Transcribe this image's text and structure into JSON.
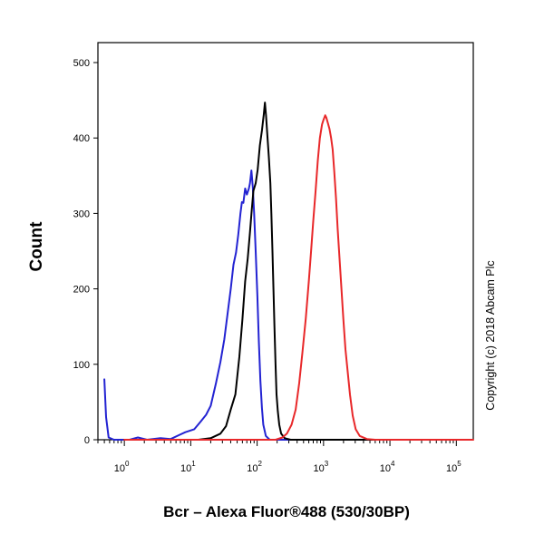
{
  "chart_data": {
    "type": "line",
    "title": "",
    "xlabel": "Bcr – Alexa Fluor®488 (530/30BP)",
    "ylabel": "Count",
    "x_scale": "log",
    "xlim": [
      0.4,
      180000
    ],
    "ylim": [
      0,
      500
    ],
    "x_ticks": [
      {
        "value": 1,
        "base": "10",
        "exp": "0"
      },
      {
        "value": 10,
        "base": "10",
        "exp": "1"
      },
      {
        "value": 100,
        "base": "10",
        "exp": "2"
      },
      {
        "value": 1000,
        "base": "10",
        "exp": "3"
      },
      {
        "value": 10000,
        "base": "10",
        "exp": "4"
      },
      {
        "value": 100000,
        "base": "10",
        "exp": "5"
      }
    ],
    "y_ticks": [
      0,
      100,
      200,
      300,
      400,
      500
    ],
    "grid": false,
    "annotation": "Copyright (c) 2018 Abcam Plc",
    "series": [
      {
        "color": "#2323d2",
        "points": [
          [
            0.5,
            80
          ],
          [
            0.53,
            30
          ],
          [
            0.58,
            3
          ],
          [
            0.7,
            0
          ],
          [
            1.2,
            0
          ],
          [
            1.6,
            3
          ],
          [
            2.2,
            0
          ],
          [
            3.5,
            2
          ],
          [
            5,
            1
          ],
          [
            6.6,
            6
          ],
          [
            8.3,
            10
          ],
          [
            11.3,
            14
          ],
          [
            14.1,
            24
          ],
          [
            17,
            33
          ],
          [
            20,
            45
          ],
          [
            24,
            75
          ],
          [
            28,
            103
          ],
          [
            32,
            133
          ],
          [
            36,
            168
          ],
          [
            40,
            200
          ],
          [
            44,
            232
          ],
          [
            48,
            248
          ],
          [
            52,
            272
          ],
          [
            56,
            300
          ],
          [
            59,
            315
          ],
          [
            62,
            314
          ],
          [
            66,
            333
          ],
          [
            70,
            325
          ],
          [
            75,
            333
          ],
          [
            78,
            340
          ],
          [
            82,
            357
          ],
          [
            86,
            335
          ],
          [
            90,
            300
          ],
          [
            95,
            250
          ],
          [
            101,
            190
          ],
          [
            106,
            130
          ],
          [
            112,
            78
          ],
          [
            118,
            42
          ],
          [
            124,
            20
          ],
          [
            135,
            5
          ],
          [
            155,
            0
          ],
          [
            250,
            0
          ],
          [
            50000,
            0
          ]
        ]
      },
      {
        "color": "#000000",
        "points": [
          [
            1,
            0
          ],
          [
            13,
            0
          ],
          [
            20,
            2
          ],
          [
            28,
            8
          ],
          [
            34,
            18
          ],
          [
            40,
            40
          ],
          [
            47,
            60
          ],
          [
            54,
            110
          ],
          [
            60,
            160
          ],
          [
            66,
            210
          ],
          [
            72,
            240
          ],
          [
            78,
            275
          ],
          [
            83,
            305
          ],
          [
            88,
            330
          ],
          [
            95,
            340
          ],
          [
            102,
            358
          ],
          [
            110,
            390
          ],
          [
            118,
            410
          ],
          [
            126,
            432
          ],
          [
            131,
            447
          ],
          [
            136,
            430
          ],
          [
            142,
            405
          ],
          [
            150,
            375
          ],
          [
            158,
            340
          ],
          [
            164,
            300
          ],
          [
            170,
            250
          ],
          [
            176,
            200
          ],
          [
            182,
            150
          ],
          [
            189,
            100
          ],
          [
            196,
            60
          ],
          [
            205,
            38
          ],
          [
            215,
            20
          ],
          [
            230,
            8
          ],
          [
            260,
            2
          ],
          [
            320,
            0
          ],
          [
            50000,
            0
          ]
        ]
      },
      {
        "color": "#e8282a",
        "points": [
          [
            1,
            0
          ],
          [
            190,
            0
          ],
          [
            240,
            3
          ],
          [
            280,
            8
          ],
          [
            330,
            20
          ],
          [
            380,
            40
          ],
          [
            430,
            75
          ],
          [
            480,
            115
          ],
          [
            540,
            160
          ],
          [
            600,
            210
          ],
          [
            650,
            250
          ],
          [
            700,
            290
          ],
          [
            760,
            330
          ],
          [
            820,
            370
          ],
          [
            880,
            400
          ],
          [
            950,
            418
          ],
          [
            1000,
            424
          ],
          [
            1060,
            430
          ],
          [
            1100,
            427
          ],
          [
            1160,
            420
          ],
          [
            1230,
            412
          ],
          [
            1300,
            400
          ],
          [
            1370,
            385
          ],
          [
            1450,
            355
          ],
          [
            1540,
            320
          ],
          [
            1630,
            280
          ],
          [
            1740,
            240
          ],
          [
            1860,
            200
          ],
          [
            1990,
            160
          ],
          [
            2140,
            120
          ],
          [
            2310,
            90
          ],
          [
            2500,
            60
          ],
          [
            2750,
            32
          ],
          [
            3050,
            14
          ],
          [
            3500,
            5
          ],
          [
            4500,
            1
          ],
          [
            6000,
            0
          ],
          [
            180000,
            0
          ]
        ]
      }
    ]
  }
}
